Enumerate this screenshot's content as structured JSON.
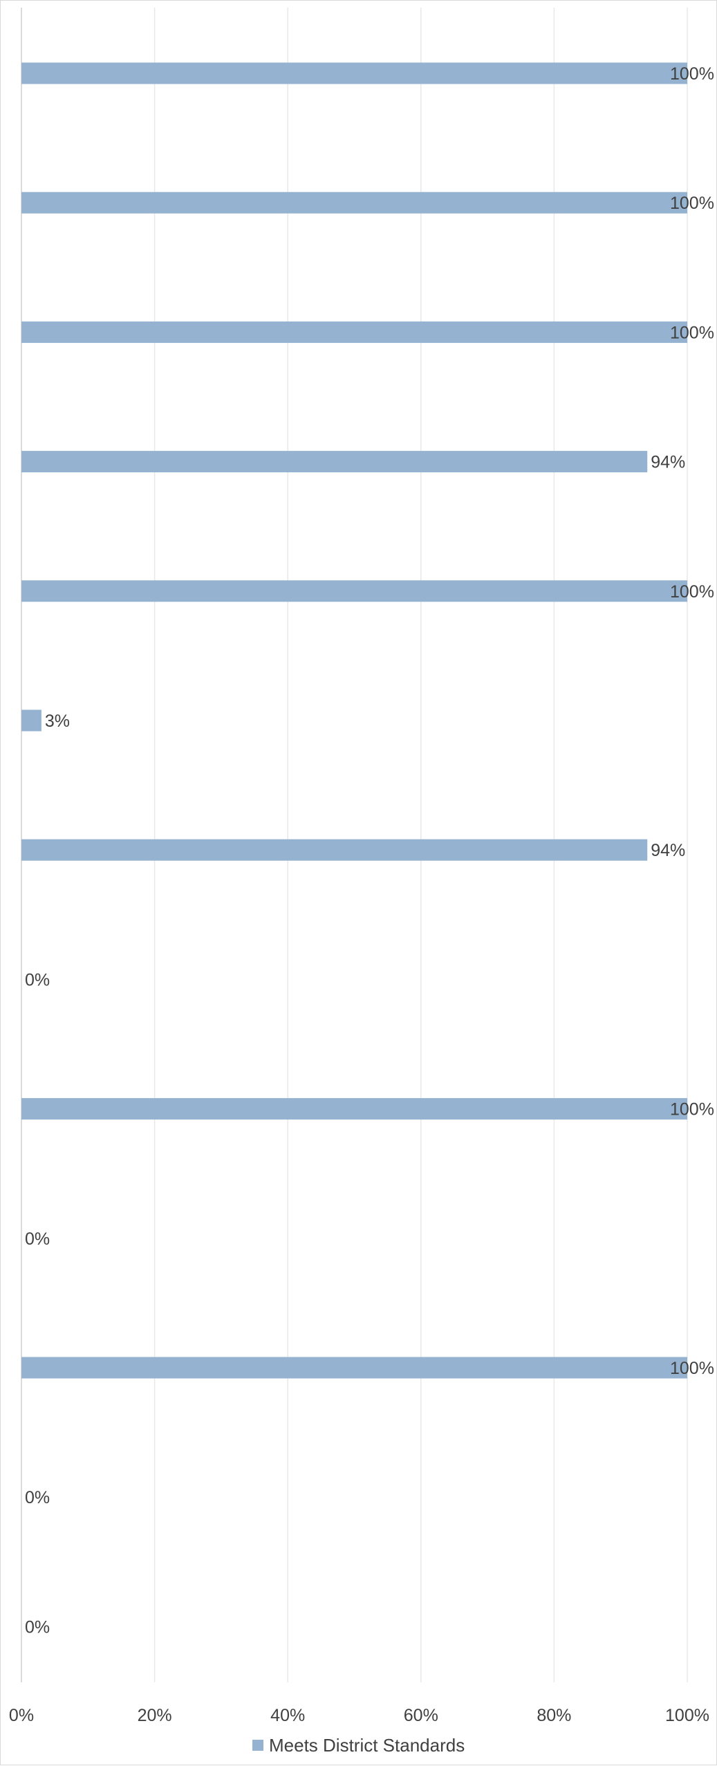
{
  "chart_data": {
    "type": "bar",
    "orientation": "horizontal",
    "title": "",
    "xlabel": "",
    "ylabel": "",
    "xlim": [
      0,
      100
    ],
    "x_ticks": [
      "0%",
      "20%",
      "40%",
      "60%",
      "80%",
      "100%"
    ],
    "grid": true,
    "legend": {
      "position": "bottom",
      "entries": [
        "Meets District Standards"
      ]
    },
    "series": [
      {
        "name": "Meets District Standards",
        "color": "#95b3d0",
        "values": [
          100,
          100,
          100,
          94,
          100,
          3,
          94,
          0,
          100,
          0,
          100,
          0,
          0
        ],
        "labels": [
          "100%",
          "100%",
          "100%",
          "94%",
          "100%",
          "3%",
          "94%",
          "0%",
          "100%",
          "0%",
          "100%",
          "0%",
          "0%"
        ]
      }
    ]
  }
}
